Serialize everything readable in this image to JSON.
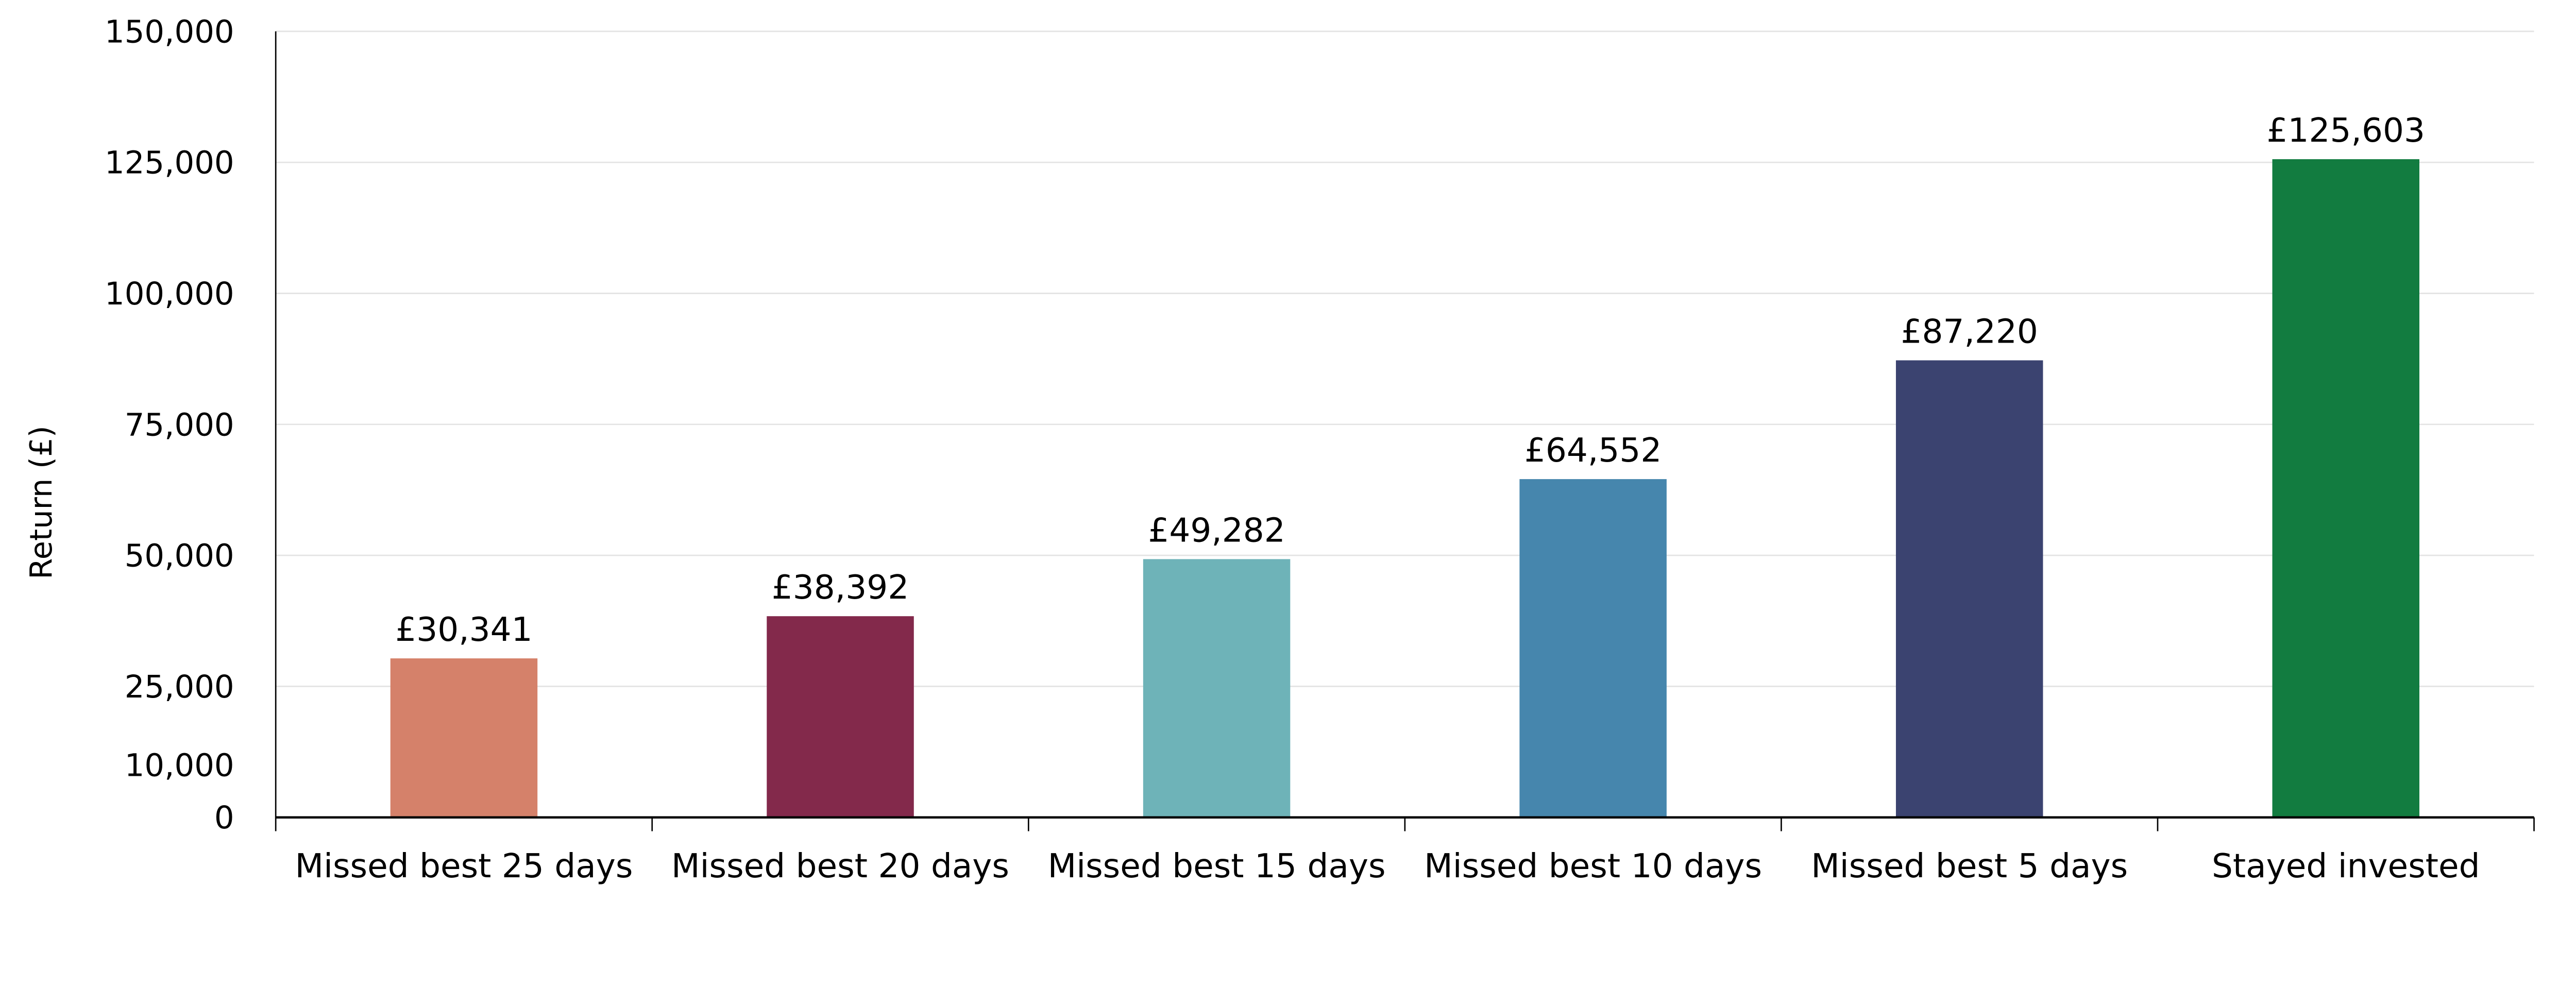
{
  "chart_data": {
    "type": "bar",
    "title": "",
    "xlabel": "",
    "ylabel": "Return (£)",
    "ylim": [
      0,
      150000
    ],
    "yticks": [
      0,
      10000,
      25000,
      50000,
      75000,
      100000,
      125000,
      150000
    ],
    "ytick_labels": [
      "0",
      "10,000",
      "25,000",
      "50,000",
      "75,000",
      "100,000",
      "125,000",
      "150,000"
    ],
    "grid": "horizontal",
    "categories": [
      "Missed best 25 days",
      "Missed best 20 days",
      "Missed best 15 days",
      "Missed best 10 days",
      "Missed best 5 days",
      "Stayed invested"
    ],
    "values": [
      30341,
      38392,
      49282,
      64552,
      87220,
      125603
    ],
    "data_labels": [
      "£30,341",
      "£38,392",
      "£49,282",
      "£64,552",
      "£87,220",
      "£125,603"
    ],
    "colors": [
      "#D5816A",
      "#83294B",
      "#6EB3B8",
      "#4686AD",
      "#3B4370",
      "#127C40"
    ]
  }
}
